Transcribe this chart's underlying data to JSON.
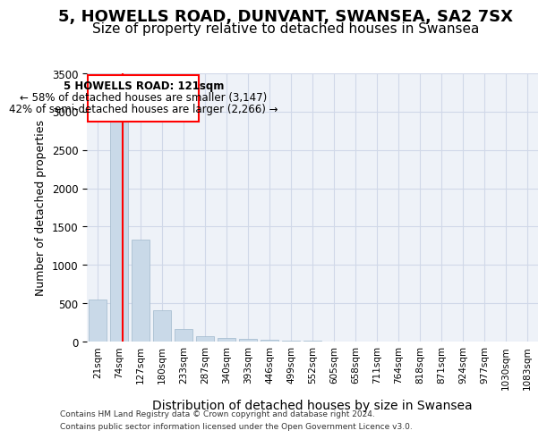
{
  "title1": "5, HOWELLS ROAD, DUNVANT, SWANSEA, SA2 7SX",
  "title2": "Size of property relative to detached houses in Swansea",
  "xlabel": "Distribution of detached houses by size in Swansea",
  "ylabel": "Number of detached properties",
  "footer1": "Contains HM Land Registry data © Crown copyright and database right 2024.",
  "footer2": "Contains public sector information licensed under the Open Government Licence v3.0.",
  "categories": [
    "21sqm",
    "74sqm",
    "127sqm",
    "180sqm",
    "233sqm",
    "287sqm",
    "340sqm",
    "393sqm",
    "446sqm",
    "499sqm",
    "552sqm",
    "605sqm",
    "658sqm",
    "711sqm",
    "764sqm",
    "818sqm",
    "871sqm",
    "924sqm",
    "977sqm",
    "1030sqm",
    "1083sqm"
  ],
  "bar_values": [
    550,
    2900,
    1330,
    410,
    160,
    70,
    45,
    35,
    20,
    15,
    10,
    5,
    5,
    5,
    5,
    5,
    0,
    0,
    0,
    0,
    0
  ],
  "bar_color": "#c9d9e8",
  "bar_edge_color": "#a0b8cc",
  "grid_color": "#d0d8e8",
  "bg_color": "#eef2f8",
  "annotation_box_text1": "5 HOWELLS ROAD: 121sqm",
  "annotation_box_text2": "← 58% of detached houses are smaller (3,147)",
  "annotation_box_text3": "42% of semi-detached houses are larger (2,266) →",
  "red_line_x": 1.15,
  "ylim": [
    0,
    3500
  ],
  "yticks": [
    0,
    500,
    1000,
    1500,
    2000,
    2500,
    3000,
    3500
  ],
  "title1_fontsize": 13,
  "title2_fontsize": 11,
  "xlabel_fontsize": 10,
  "ylabel_fontsize": 9,
  "annotation_fontsize": 8.5
}
